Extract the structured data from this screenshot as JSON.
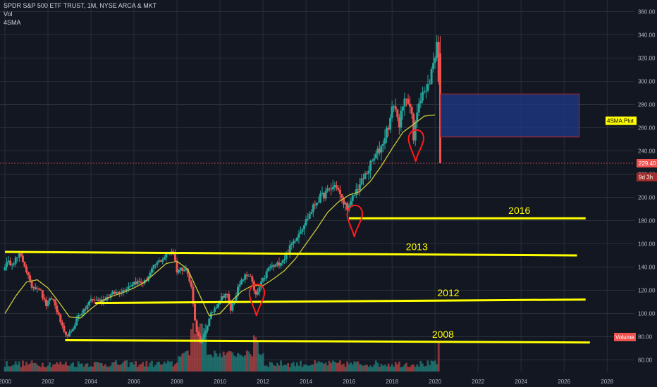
{
  "header": {
    "symbol_line": "SPDR S&P 500 ETF TRUST, 1M, NYSE ARCA & MKT",
    "indicator_1": "Vol",
    "indicator_2": "4SMA"
  },
  "colors": {
    "background": "#131722",
    "grid": "#2a2e39",
    "candle_up": "#26a69a",
    "candle_down": "#ef5350",
    "sma_line": "#c8c83a",
    "drawing_yellow": "#ffff00",
    "drawing_red": "#ff1a1a",
    "box_fill": "#1e3a8a",
    "box_border": "#c62828",
    "price_line": "#ef5350",
    "axis_text": "#b2b5be"
  },
  "chart_data": {
    "type": "candlestick",
    "title": "SPDR S&P 500 ETF TRUST, 1M, NYSE ARCA & MKT",
    "interval": "1M",
    "y_axis": {
      "position": "right",
      "range": [
        50,
        370
      ],
      "ticks": [
        60,
        80,
        100,
        120,
        140,
        160,
        180,
        200,
        220,
        240,
        260,
        280,
        300,
        320,
        340,
        360
      ]
    },
    "x_axis": {
      "range": [
        2000,
        2029.5
      ],
      "ticks": [
        2000,
        2002,
        2004,
        2006,
        2008,
        2010,
        2012,
        2014,
        2016,
        2018,
        2020,
        2022,
        2024,
        2026,
        2028
      ]
    },
    "grid": true,
    "price_path": [
      [
        2000.0,
        142
      ],
      [
        2000.4,
        145
      ],
      [
        2000.7,
        150
      ],
      [
        2000.9,
        143
      ],
      [
        2001.2,
        124
      ],
      [
        2001.6,
        122
      ],
      [
        2001.9,
        107
      ],
      [
        2002.2,
        114
      ],
      [
        2002.6,
        92
      ],
      [
        2002.8,
        80
      ],
      [
        2003.1,
        84
      ],
      [
        2003.4,
        98
      ],
      [
        2003.7,
        103
      ],
      [
        2004.0,
        112
      ],
      [
        2004.5,
        111
      ],
      [
        2005.0,
        117
      ],
      [
        2005.5,
        120
      ],
      [
        2006.0,
        127
      ],
      [
        2006.5,
        127
      ],
      [
        2007.0,
        142
      ],
      [
        2007.5,
        150
      ],
      [
        2007.8,
        155
      ],
      [
        2008.0,
        137
      ],
      [
        2008.4,
        140
      ],
      [
        2008.7,
        120
      ],
      [
        2008.85,
        90
      ],
      [
        2009.1,
        73
      ],
      [
        2009.3,
        84
      ],
      [
        2009.6,
        100
      ],
      [
        2010.0,
        112
      ],
      [
        2010.3,
        118
      ],
      [
        2010.5,
        103
      ],
      [
        2010.8,
        120
      ],
      [
        2011.1,
        131
      ],
      [
        2011.4,
        134
      ],
      [
        2011.65,
        114
      ],
      [
        2011.9,
        125
      ],
      [
        2012.3,
        140
      ],
      [
        2012.6,
        141
      ],
      [
        2013.0,
        148
      ],
      [
        2013.5,
        165
      ],
      [
        2014.0,
        180
      ],
      [
        2014.5,
        197
      ],
      [
        2015.0,
        205
      ],
      [
        2015.4,
        211
      ],
      [
        2015.7,
        196
      ],
      [
        2016.0,
        191
      ],
      [
        2016.3,
        205
      ],
      [
        2016.7,
        217
      ],
      [
        2017.0,
        228
      ],
      [
        2017.5,
        244
      ],
      [
        2017.9,
        266
      ],
      [
        2018.1,
        283
      ],
      [
        2018.3,
        262
      ],
      [
        2018.7,
        290
      ],
      [
        2018.9,
        272
      ],
      [
        2019.0,
        249
      ],
      [
        2019.2,
        280
      ],
      [
        2019.4,
        292
      ],
      [
        2019.6,
        290
      ],
      [
        2019.8,
        305
      ],
      [
        2020.0,
        324
      ],
      [
        2020.1,
        337
      ],
      [
        2020.17,
        296
      ],
      [
        2020.24,
        229.4
      ]
    ],
    "sma_path": [
      [
        2000.0,
        100
      ],
      [
        2000.5,
        115
      ],
      [
        2001.0,
        127
      ],
      [
        2001.5,
        129
      ],
      [
        2002.0,
        122
      ],
      [
        2002.5,
        110
      ],
      [
        2003.0,
        97
      ],
      [
        2003.5,
        96
      ],
      [
        2004.0,
        104
      ],
      [
        2004.5,
        111
      ],
      [
        2005.0,
        115
      ],
      [
        2005.5,
        118
      ],
      [
        2006.0,
        122
      ],
      [
        2006.5,
        127
      ],
      [
        2007.0,
        135
      ],
      [
        2007.5,
        143
      ],
      [
        2008.0,
        145
      ],
      [
        2008.5,
        138
      ],
      [
        2009.0,
        118
      ],
      [
        2009.5,
        98
      ],
      [
        2010.0,
        100
      ],
      [
        2010.5,
        110
      ],
      [
        2011.0,
        119
      ],
      [
        2011.5,
        124
      ],
      [
        2012.0,
        124
      ],
      [
        2012.5,
        130
      ],
      [
        2013.0,
        137
      ],
      [
        2013.5,
        147
      ],
      [
        2014.0,
        160
      ],
      [
        2014.5,
        173
      ],
      [
        2015.0,
        187
      ],
      [
        2015.5,
        196
      ],
      [
        2016.0,
        202
      ],
      [
        2016.5,
        205
      ],
      [
        2017.0,
        214
      ],
      [
        2017.5,
        227
      ],
      [
        2018.0,
        242
      ],
      [
        2018.5,
        256
      ],
      [
        2019.0,
        263
      ],
      [
        2019.5,
        270
      ],
      [
        2020.0,
        271
      ]
    ],
    "last_price": 229.4,
    "price_labels": [
      {
        "text": "229.40",
        "value": 229.4
      },
      {
        "text": "9d 3h",
        "value": 217.5
      }
    ],
    "plot_label": {
      "text": "4SMA:Plot",
      "value": 266
    },
    "volume_label": "Volume",
    "annotations": [
      {
        "type": "line",
        "color": "yellow",
        "label": "2016",
        "from": [
          2016.0,
          182
        ],
        "to": [
          2027.0,
          182
        ]
      },
      {
        "type": "line",
        "color": "yellow",
        "label": "2013",
        "from": [
          2000.0,
          153
        ],
        "to": [
          2026.6,
          150
        ]
      },
      {
        "type": "line",
        "color": "yellow",
        "label": "2012",
        "from": [
          2004.2,
          109
        ],
        "to": [
          2027.0,
          112
        ]
      },
      {
        "type": "line",
        "color": "yellow",
        "label": "2008",
        "from": [
          2002.8,
          77
        ],
        "to": [
          2027.2,
          75
        ]
      },
      {
        "type": "rectangle",
        "color": "blue",
        "from": [
          2020.25,
          289
        ],
        "to": [
          2026.7,
          252
        ]
      },
      {
        "type": "marker",
        "color": "red",
        "at": [
          2011.7,
          116
        ]
      },
      {
        "type": "marker",
        "color": "red",
        "at": [
          2016.25,
          184
        ]
      },
      {
        "type": "marker",
        "color": "red",
        "at": [
          2019.1,
          249
        ]
      }
    ]
  }
}
